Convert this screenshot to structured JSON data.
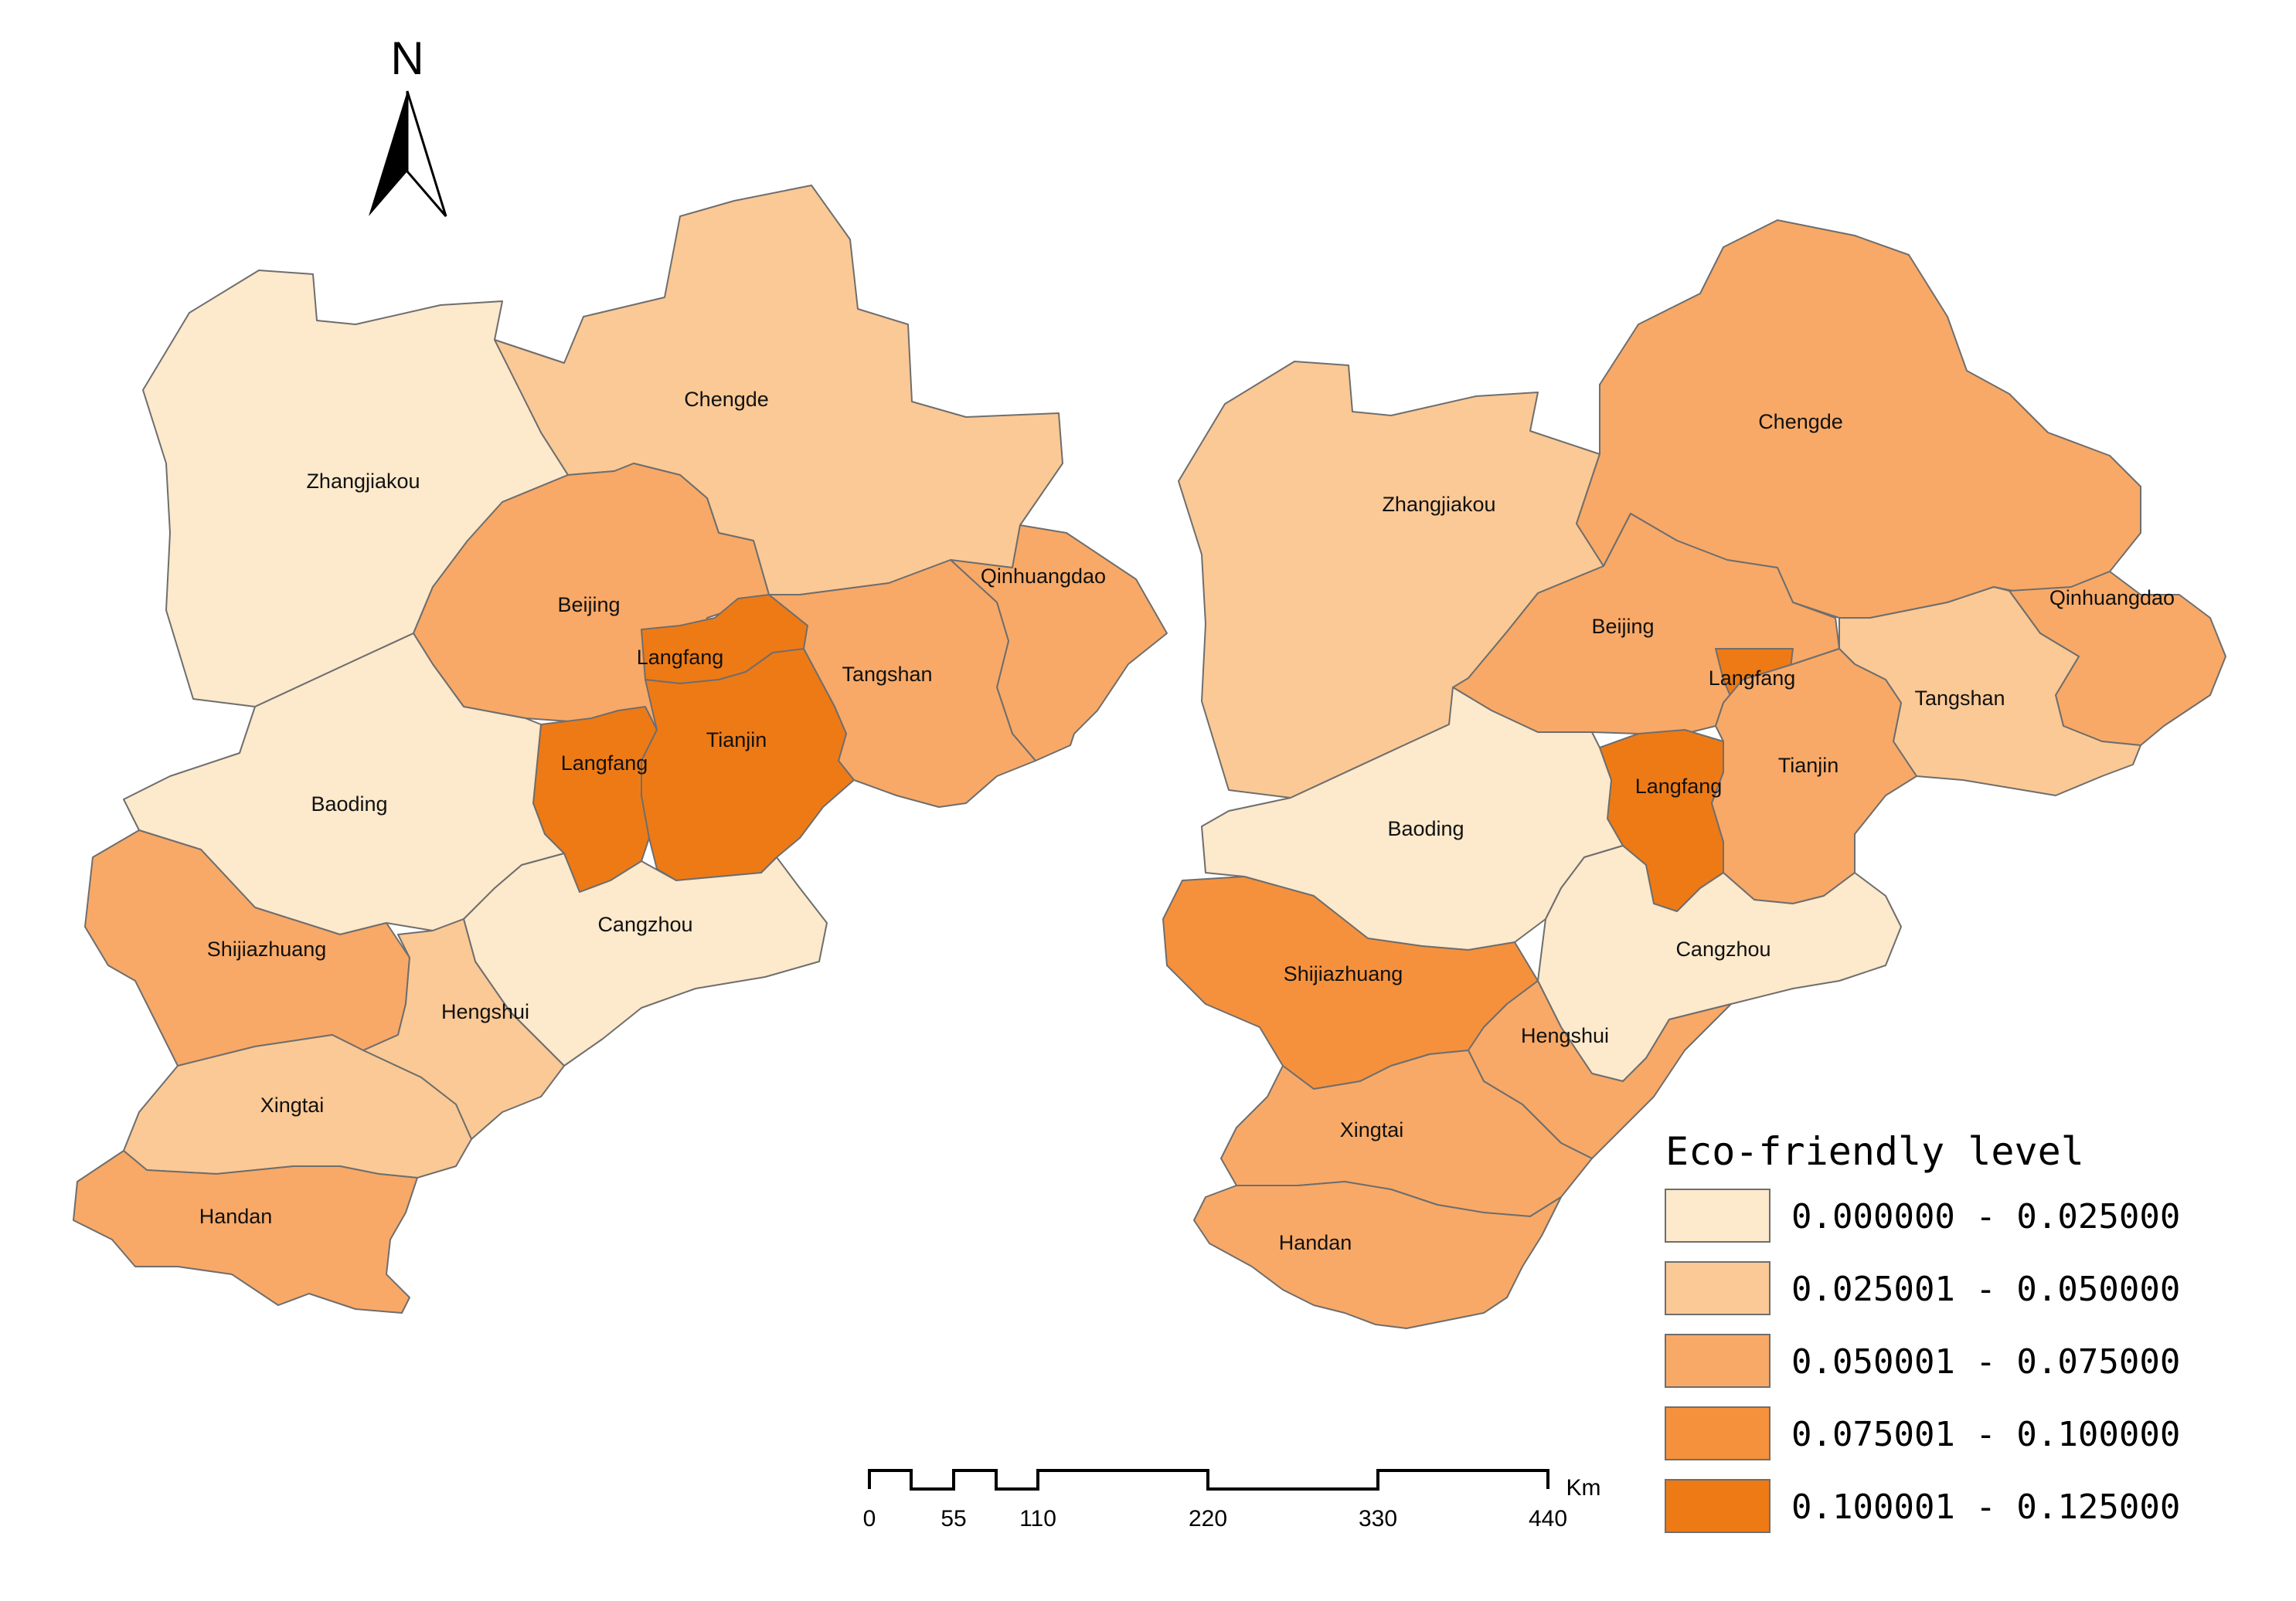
{
  "north_arrow": {
    "letter": "N"
  },
  "scale_bar": {
    "unit": "Km",
    "ticks": [
      "0",
      "55",
      "110",
      "220",
      "330",
      "440"
    ]
  },
  "legend": {
    "title": "Eco-friendly level",
    "classes": [
      {
        "label": "0.000000 - 0.025000",
        "color": "#fde9cb"
      },
      {
        "label": "0.025001 - 0.050000",
        "color": "#fbc995"
      },
      {
        "label": "0.050001 - 0.075000",
        "color": "#f8a967"
      },
      {
        "label": "0.075001 - 0.100000",
        "color": "#f5913d"
      },
      {
        "label": "0.100001 - 0.125000",
        "color": "#ee7a16"
      }
    ]
  },
  "maps": [
    {
      "regions": [
        {
          "id": "zhangjiakou",
          "label": "Zhangjiakou",
          "class": 0
        },
        {
          "id": "chengde",
          "label": "Chengde",
          "class": 1
        },
        {
          "id": "beijing",
          "label": "Beijing",
          "class": 2
        },
        {
          "id": "qinhuangdao",
          "label": "Qinhuangdao",
          "class": 2
        },
        {
          "id": "langfang-north",
          "label": "Langfang",
          "class": 4
        },
        {
          "id": "tangshan",
          "label": "Tangshan",
          "class": 2
        },
        {
          "id": "langfang-south",
          "label": "Langfang",
          "class": 4
        },
        {
          "id": "tianjin",
          "label": "Tianjin",
          "class": 4
        },
        {
          "id": "baoding",
          "label": "Baoding",
          "class": 0
        },
        {
          "id": "cangzhou",
          "label": "Cangzhou",
          "class": 0
        },
        {
          "id": "shijiazhuang",
          "label": "Shijiazhuang",
          "class": 2
        },
        {
          "id": "hengshui",
          "label": "Hengshui",
          "class": 1
        },
        {
          "id": "xingtai",
          "label": "Xingtai",
          "class": 1
        },
        {
          "id": "handan",
          "label": "Handan",
          "class": 2
        }
      ]
    },
    {
      "regions": [
        {
          "id": "zhangjiakou",
          "label": "Zhangjiakou",
          "class": 1
        },
        {
          "id": "chengde",
          "label": "Chengde",
          "class": 2
        },
        {
          "id": "beijing",
          "label": "Beijing",
          "class": 2
        },
        {
          "id": "qinhuangdao",
          "label": "Qinhuangdao",
          "class": 2
        },
        {
          "id": "langfang-north",
          "label": "Langfang",
          "class": 4
        },
        {
          "id": "tangshan",
          "label": "Tangshan",
          "class": 1
        },
        {
          "id": "langfang-south",
          "label": "Langfang",
          "class": 4
        },
        {
          "id": "tianjin",
          "label": "Tianjin",
          "class": 2
        },
        {
          "id": "baoding",
          "label": "Baoding",
          "class": 0
        },
        {
          "id": "cangzhou",
          "label": "Cangzhou",
          "class": 0
        },
        {
          "id": "shijiazhuang",
          "label": "Shijiazhuang",
          "class": 3
        },
        {
          "id": "hengshui",
          "label": "Hengshui",
          "class": 2
        },
        {
          "id": "xingtai",
          "label": "Xingtai",
          "class": 2
        },
        {
          "id": "handan",
          "label": "Handan",
          "class": 2
        }
      ]
    }
  ]
}
